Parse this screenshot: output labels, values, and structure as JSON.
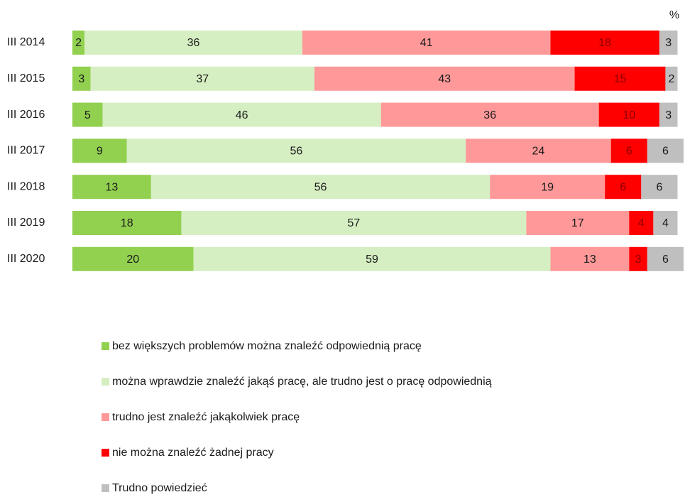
{
  "chart_data": {
    "type": "bar",
    "orientation": "horizontal",
    "stacked": true,
    "unit": "%",
    "categories": [
      "III 2014",
      "III 2015",
      "III 2016",
      "III 2017",
      "III 2018",
      "III 2019",
      "III 2020"
    ],
    "series": [
      {
        "name": "bez większych problemów można znaleźć odpowiednią pracę",
        "color": "#92d050",
        "values": [
          2,
          3,
          5,
          9,
          13,
          18,
          20
        ]
      },
      {
        "name": "można wprawdzie znaleźć jakąś pracę, ale trudno jest o pracę odpowiednią",
        "color": "#d6efc2",
        "values": [
          36,
          37,
          46,
          56,
          56,
          57,
          59
        ]
      },
      {
        "name": "trudno jest znaleźć jakąkolwiek pracę",
        "color": "#ff9999",
        "values": [
          41,
          43,
          36,
          24,
          19,
          17,
          13
        ]
      },
      {
        "name": "nie można znaleźć żadnej pracy",
        "color": "#ff0000",
        "values": [
          18,
          15,
          10,
          6,
          6,
          4,
          3
        ]
      },
      {
        "name": "Trudno powiedzieć",
        "color": "#bfbfbf",
        "values": [
          3,
          2,
          3,
          6,
          6,
          4,
          6
        ]
      }
    ]
  }
}
